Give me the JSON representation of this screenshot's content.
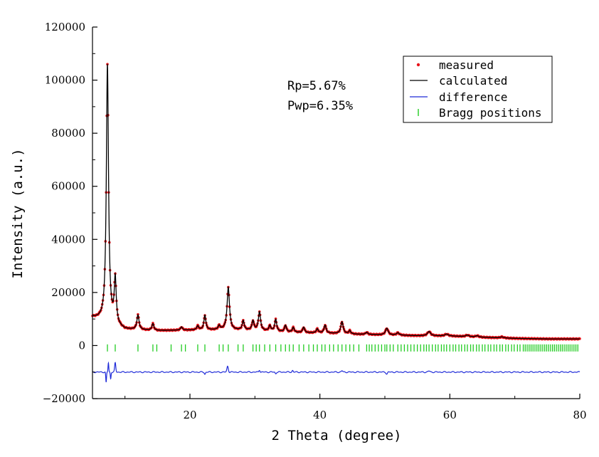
{
  "chart_data": {
    "type": "line",
    "xlabel": "2 Theta (degree)",
    "ylabel": "Intensity (a.u.)",
    "xlim": [
      5,
      80
    ],
    "ylim": [
      -20000,
      120000
    ],
    "x_ticks": [
      20,
      40,
      60,
      80
    ],
    "y_ticks": [
      -20000,
      0,
      20000,
      40000,
      60000,
      80000,
      100000,
      120000
    ],
    "annotations": [
      "Rp=5.67%",
      "Pwp=6.35%"
    ],
    "legend_position": "top-right",
    "legend": [
      {
        "label": "measured",
        "color": "#e8141b",
        "marker": "dot"
      },
      {
        "label": "calculated",
        "color": "#000000",
        "marker": "line"
      },
      {
        "label": "difference",
        "color": "#1f2bd8",
        "marker": "line"
      },
      {
        "label": "Bragg positions",
        "color": "#22cc22",
        "marker": "tick"
      }
    ],
    "peaks": [
      {
        "pos": 7.3,
        "height": 97000,
        "width": 0.2
      },
      {
        "pos": 8.5,
        "height": 17000,
        "width": 0.18
      },
      {
        "pos": 12.0,
        "height": 5500,
        "width": 0.2
      },
      {
        "pos": 14.3,
        "height": 2500,
        "width": 0.18
      },
      {
        "pos": 18.7,
        "height": 1200,
        "width": 0.18
      },
      {
        "pos": 21.2,
        "height": 1500,
        "width": 0.18
      },
      {
        "pos": 22.3,
        "height": 5500,
        "width": 0.18
      },
      {
        "pos": 24.5,
        "height": 1500,
        "width": 0.18
      },
      {
        "pos": 25.9,
        "height": 16000,
        "width": 0.22
      },
      {
        "pos": 28.2,
        "height": 3500,
        "width": 0.18
      },
      {
        "pos": 29.7,
        "height": 3500,
        "width": 0.18
      },
      {
        "pos": 30.7,
        "height": 7000,
        "width": 0.2
      },
      {
        "pos": 32.3,
        "height": 2000,
        "width": 0.18
      },
      {
        "pos": 33.2,
        "height": 4500,
        "width": 0.18
      },
      {
        "pos": 34.7,
        "height": 2500,
        "width": 0.18
      },
      {
        "pos": 35.9,
        "height": 1800,
        "width": 0.18
      },
      {
        "pos": 37.5,
        "height": 2000,
        "width": 0.18
      },
      {
        "pos": 39.6,
        "height": 1500,
        "width": 0.18
      },
      {
        "pos": 40.8,
        "height": 3000,
        "width": 0.2
      },
      {
        "pos": 43.4,
        "height": 4500,
        "width": 0.22
      },
      {
        "pos": 44.6,
        "height": 1200,
        "width": 0.18
      },
      {
        "pos": 47.2,
        "height": 800,
        "width": 0.2
      },
      {
        "pos": 50.3,
        "height": 2500,
        "width": 0.25
      },
      {
        "pos": 52.0,
        "height": 900,
        "width": 0.25
      },
      {
        "pos": 56.8,
        "height": 1600,
        "width": 0.3
      },
      {
        "pos": 59.5,
        "height": 700,
        "width": 0.3
      },
      {
        "pos": 62.7,
        "height": 600,
        "width": 0.3
      },
      {
        "pos": 64.2,
        "height": 500,
        "width": 0.3
      },
      {
        "pos": 68.0,
        "height": 400,
        "width": 0.3
      }
    ],
    "background": [
      {
        "x": 5,
        "y": 10500
      },
      {
        "x": 6.5,
        "y": 9500
      },
      {
        "x": 10,
        "y": 6000
      },
      {
        "x": 15,
        "y": 5600
      },
      {
        "x": 20,
        "y": 5800
      },
      {
        "x": 25,
        "y": 5900
      },
      {
        "x": 30,
        "y": 5700
      },
      {
        "x": 35,
        "y": 5000
      },
      {
        "x": 40,
        "y": 4700
      },
      {
        "x": 45,
        "y": 4300
      },
      {
        "x": 50,
        "y": 4000
      },
      {
        "x": 55,
        "y": 3700
      },
      {
        "x": 60,
        "y": 3600
      },
      {
        "x": 65,
        "y": 3100
      },
      {
        "x": 70,
        "y": 2700
      },
      {
        "x": 75,
        "y": 2500
      },
      {
        "x": 80,
        "y": 2500
      }
    ],
    "difference_baseline": -10000,
    "difference_features": [
      {
        "pos": 7.1,
        "amp": -4000,
        "width": 0.08
      },
      {
        "pos": 7.45,
        "amp": 3500,
        "width": 0.08
      },
      {
        "pos": 7.8,
        "amp": -2500,
        "width": 0.08
      },
      {
        "pos": 8.5,
        "amp": 3500,
        "width": 0.12
      },
      {
        "pos": 22.3,
        "amp": -800,
        "width": 0.12
      },
      {
        "pos": 25.8,
        "amp": 2200,
        "width": 0.15
      },
      {
        "pos": 30.7,
        "amp": 800,
        "width": 0.12
      },
      {
        "pos": 33.2,
        "amp": -600,
        "width": 0.12
      },
      {
        "pos": 35.8,
        "amp": 600,
        "width": 0.12
      },
      {
        "pos": 43.4,
        "amp": 500,
        "width": 0.15
      },
      {
        "pos": 50.3,
        "amp": -700,
        "width": 0.15
      },
      {
        "pos": 56.8,
        "amp": 400,
        "width": 0.2
      }
    ],
    "bragg_y": -900,
    "bragg_positions": [
      7.3,
      8.5,
      12.0,
      14.3,
      14.9,
      17.1,
      18.7,
      19.3,
      21.2,
      22.3,
      24.5,
      25.1,
      25.9,
      27.4,
      28.2,
      29.7,
      30.2,
      30.7,
      31.5,
      32.3,
      33.2,
      34.0,
      34.7,
      35.3,
      35.9,
      36.8,
      37.5,
      38.3,
      39.0,
      39.6,
      40.3,
      40.8,
      41.5,
      42.1,
      42.8,
      43.4,
      44.0,
      44.6,
      45.2,
      46.0,
      47.2,
      47.6,
      48.0,
      48.5,
      49.0,
      49.5,
      50.0,
      50.3,
      50.8,
      51.3,
      52.0,
      52.5,
      53.0,
      53.5,
      54.0,
      54.5,
      55.0,
      55.5,
      56.0,
      56.4,
      56.8,
      57.3,
      57.8,
      58.2,
      58.7,
      59.1,
      59.5,
      60.0,
      60.5,
      60.9,
      61.4,
      61.8,
      62.3,
      62.7,
      63.2,
      63.6,
      64.1,
      64.5,
      65.0,
      65.4,
      65.9,
      66.3,
      66.8,
      67.2,
      67.7,
      68.1,
      68.6,
      69.0,
      69.5,
      69.9,
      70.4,
      70.8,
      71.3,
      71.6,
      71.9,
      72.2,
      72.5,
      72.8,
      73.1,
      73.4,
      73.7,
      74.0,
      74.3,
      74.6,
      74.9,
      75.2,
      75.5,
      75.8,
      76.1,
      76.4,
      76.7,
      77.0,
      77.3,
      77.6,
      77.9,
      78.2,
      78.5,
      78.8,
      79.1,
      79.4,
      79.7
    ]
  }
}
